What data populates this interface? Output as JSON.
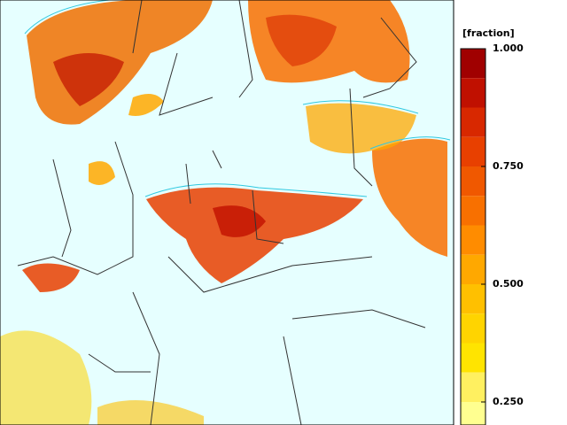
{
  "colorbar": {
    "title": "[fraction]",
    "lim": [
      0.1875,
      1
    ],
    "ticks": [
      {
        "value": 1,
        "label": "1.000"
      },
      {
        "value": 0.75,
        "label": "0.750"
      },
      {
        "value": 0.5,
        "label": "0.500"
      },
      {
        "value": 0.25,
        "label": "0.250"
      }
    ],
    "colors": [
      "#a00000",
      "#c01000",
      "#d82800",
      "#e84000",
      "#f05800",
      "#f87000",
      "#ff8c00",
      "#ffa800",
      "#ffc000",
      "#ffd400",
      "#ffe400",
      "#fff060",
      "#ffff90"
    ]
  }
}
